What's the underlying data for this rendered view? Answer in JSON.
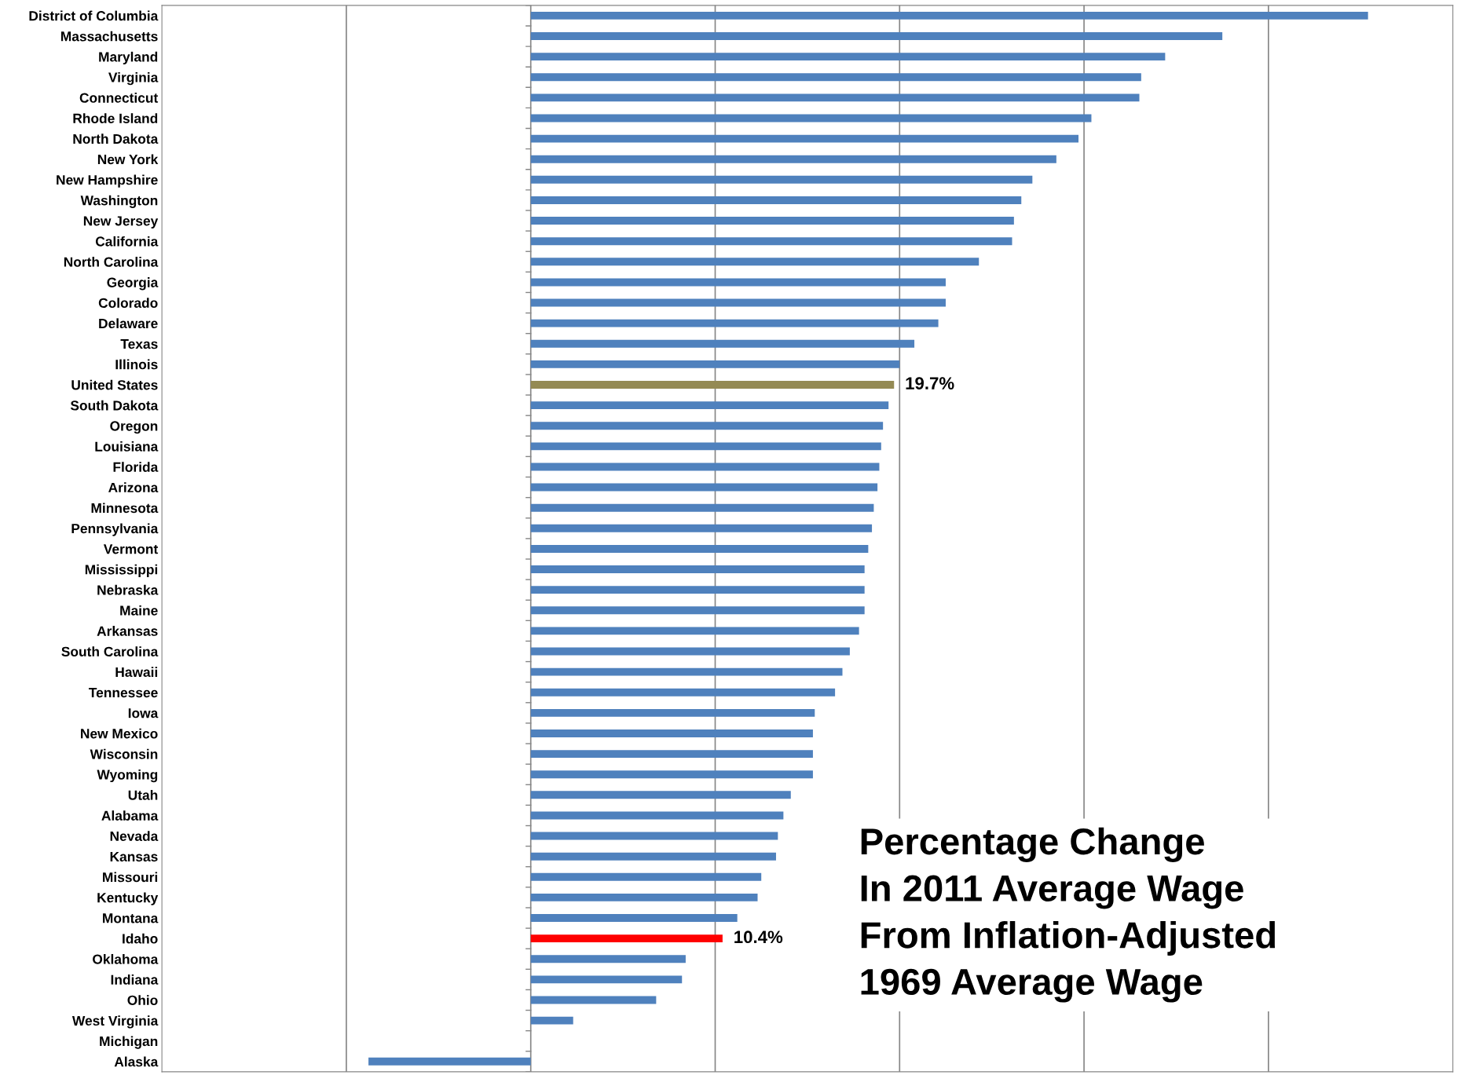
{
  "chart_data": {
    "type": "bar",
    "orientation": "horizontal",
    "title": "Percentage Change\nIn 2011 Average Wage\nFrom Inflation-Adjusted\n1969 Average Wage",
    "categories": [
      "District of Columbia",
      "Massachusetts",
      "Maryland",
      "Virginia",
      "Connecticut",
      "Rhode Island",
      "North Dakota",
      "New York",
      "New Hampshire",
      "Washington",
      "New Jersey",
      "California",
      "North Carolina",
      "Georgia",
      "Colorado",
      "Delaware",
      "Texas",
      "Illinois",
      "United States",
      "South Dakota",
      "Oregon",
      "Louisiana",
      "Florida",
      "Arizona",
      "Minnesota",
      "Pennsylvania",
      "Vermont",
      "Mississippi",
      "Nebraska",
      "Maine",
      "Arkansas",
      "South Carolina",
      "Hawaii",
      "Tennessee",
      "Iowa",
      "New Mexico",
      "Wisconsin",
      "Wyoming",
      "Utah",
      "Alabama",
      "Nevada",
      "Kansas",
      "Missouri",
      "Kentucky",
      "Montana",
      "Idaho",
      "Oklahoma",
      "Indiana",
      "Ohio",
      "West Virginia",
      "Michigan",
      "Alaska"
    ],
    "values": [
      45.4,
      37.5,
      34.4,
      33.1,
      33.0,
      30.4,
      29.7,
      28.5,
      27.2,
      26.6,
      26.2,
      26.1,
      24.3,
      22.5,
      22.5,
      22.1,
      20.8,
      20.0,
      19.7,
      19.4,
      19.1,
      19.0,
      18.9,
      18.8,
      18.6,
      18.5,
      18.3,
      18.1,
      18.1,
      18.1,
      17.8,
      17.3,
      16.9,
      16.5,
      15.4,
      15.3,
      15.3,
      15.3,
      14.1,
      13.7,
      13.4,
      13.3,
      12.5,
      12.3,
      11.2,
      10.4,
      8.4,
      8.2,
      6.8,
      2.3,
      0.0,
      -8.8
    ],
    "colors": [
      "#4f81bd",
      "#4f81bd",
      "#4f81bd",
      "#4f81bd",
      "#4f81bd",
      "#4f81bd",
      "#4f81bd",
      "#4f81bd",
      "#4f81bd",
      "#4f81bd",
      "#4f81bd",
      "#4f81bd",
      "#4f81bd",
      "#4f81bd",
      "#4f81bd",
      "#4f81bd",
      "#4f81bd",
      "#4f81bd",
      "#948a54",
      "#4f81bd",
      "#4f81bd",
      "#4f81bd",
      "#4f81bd",
      "#4f81bd",
      "#4f81bd",
      "#4f81bd",
      "#4f81bd",
      "#4f81bd",
      "#4f81bd",
      "#4f81bd",
      "#4f81bd",
      "#4f81bd",
      "#4f81bd",
      "#4f81bd",
      "#4f81bd",
      "#4f81bd",
      "#4f81bd",
      "#4f81bd",
      "#4f81bd",
      "#4f81bd",
      "#4f81bd",
      "#4f81bd",
      "#4f81bd",
      "#4f81bd",
      "#4f81bd",
      "#ff0000",
      "#4f81bd",
      "#4f81bd",
      "#4f81bd",
      "#4f81bd",
      "#4f81bd",
      "#4f81bd"
    ],
    "value_labels": [
      null,
      null,
      null,
      null,
      null,
      null,
      null,
      null,
      null,
      null,
      null,
      null,
      null,
      null,
      null,
      null,
      null,
      null,
      "19.7%",
      null,
      null,
      null,
      null,
      null,
      null,
      null,
      null,
      null,
      null,
      null,
      null,
      null,
      null,
      null,
      null,
      null,
      null,
      null,
      null,
      null,
      null,
      null,
      null,
      null,
      null,
      "10.4%",
      null,
      null,
      null,
      null,
      null,
      null
    ],
    "xlim": [
      -20,
      50
    ],
    "xticks": [
      {
        "value": -10,
        "label": null
      },
      {
        "value": 0,
        "label": null
      },
      {
        "value": 10,
        "label": null
      },
      {
        "value": 20,
        "label": null
      },
      {
        "value": 30,
        "label": null
      },
      {
        "value": 40,
        "label": null
      }
    ],
    "grid": "x",
    "tick_labels": "y",
    "legend": false
  }
}
